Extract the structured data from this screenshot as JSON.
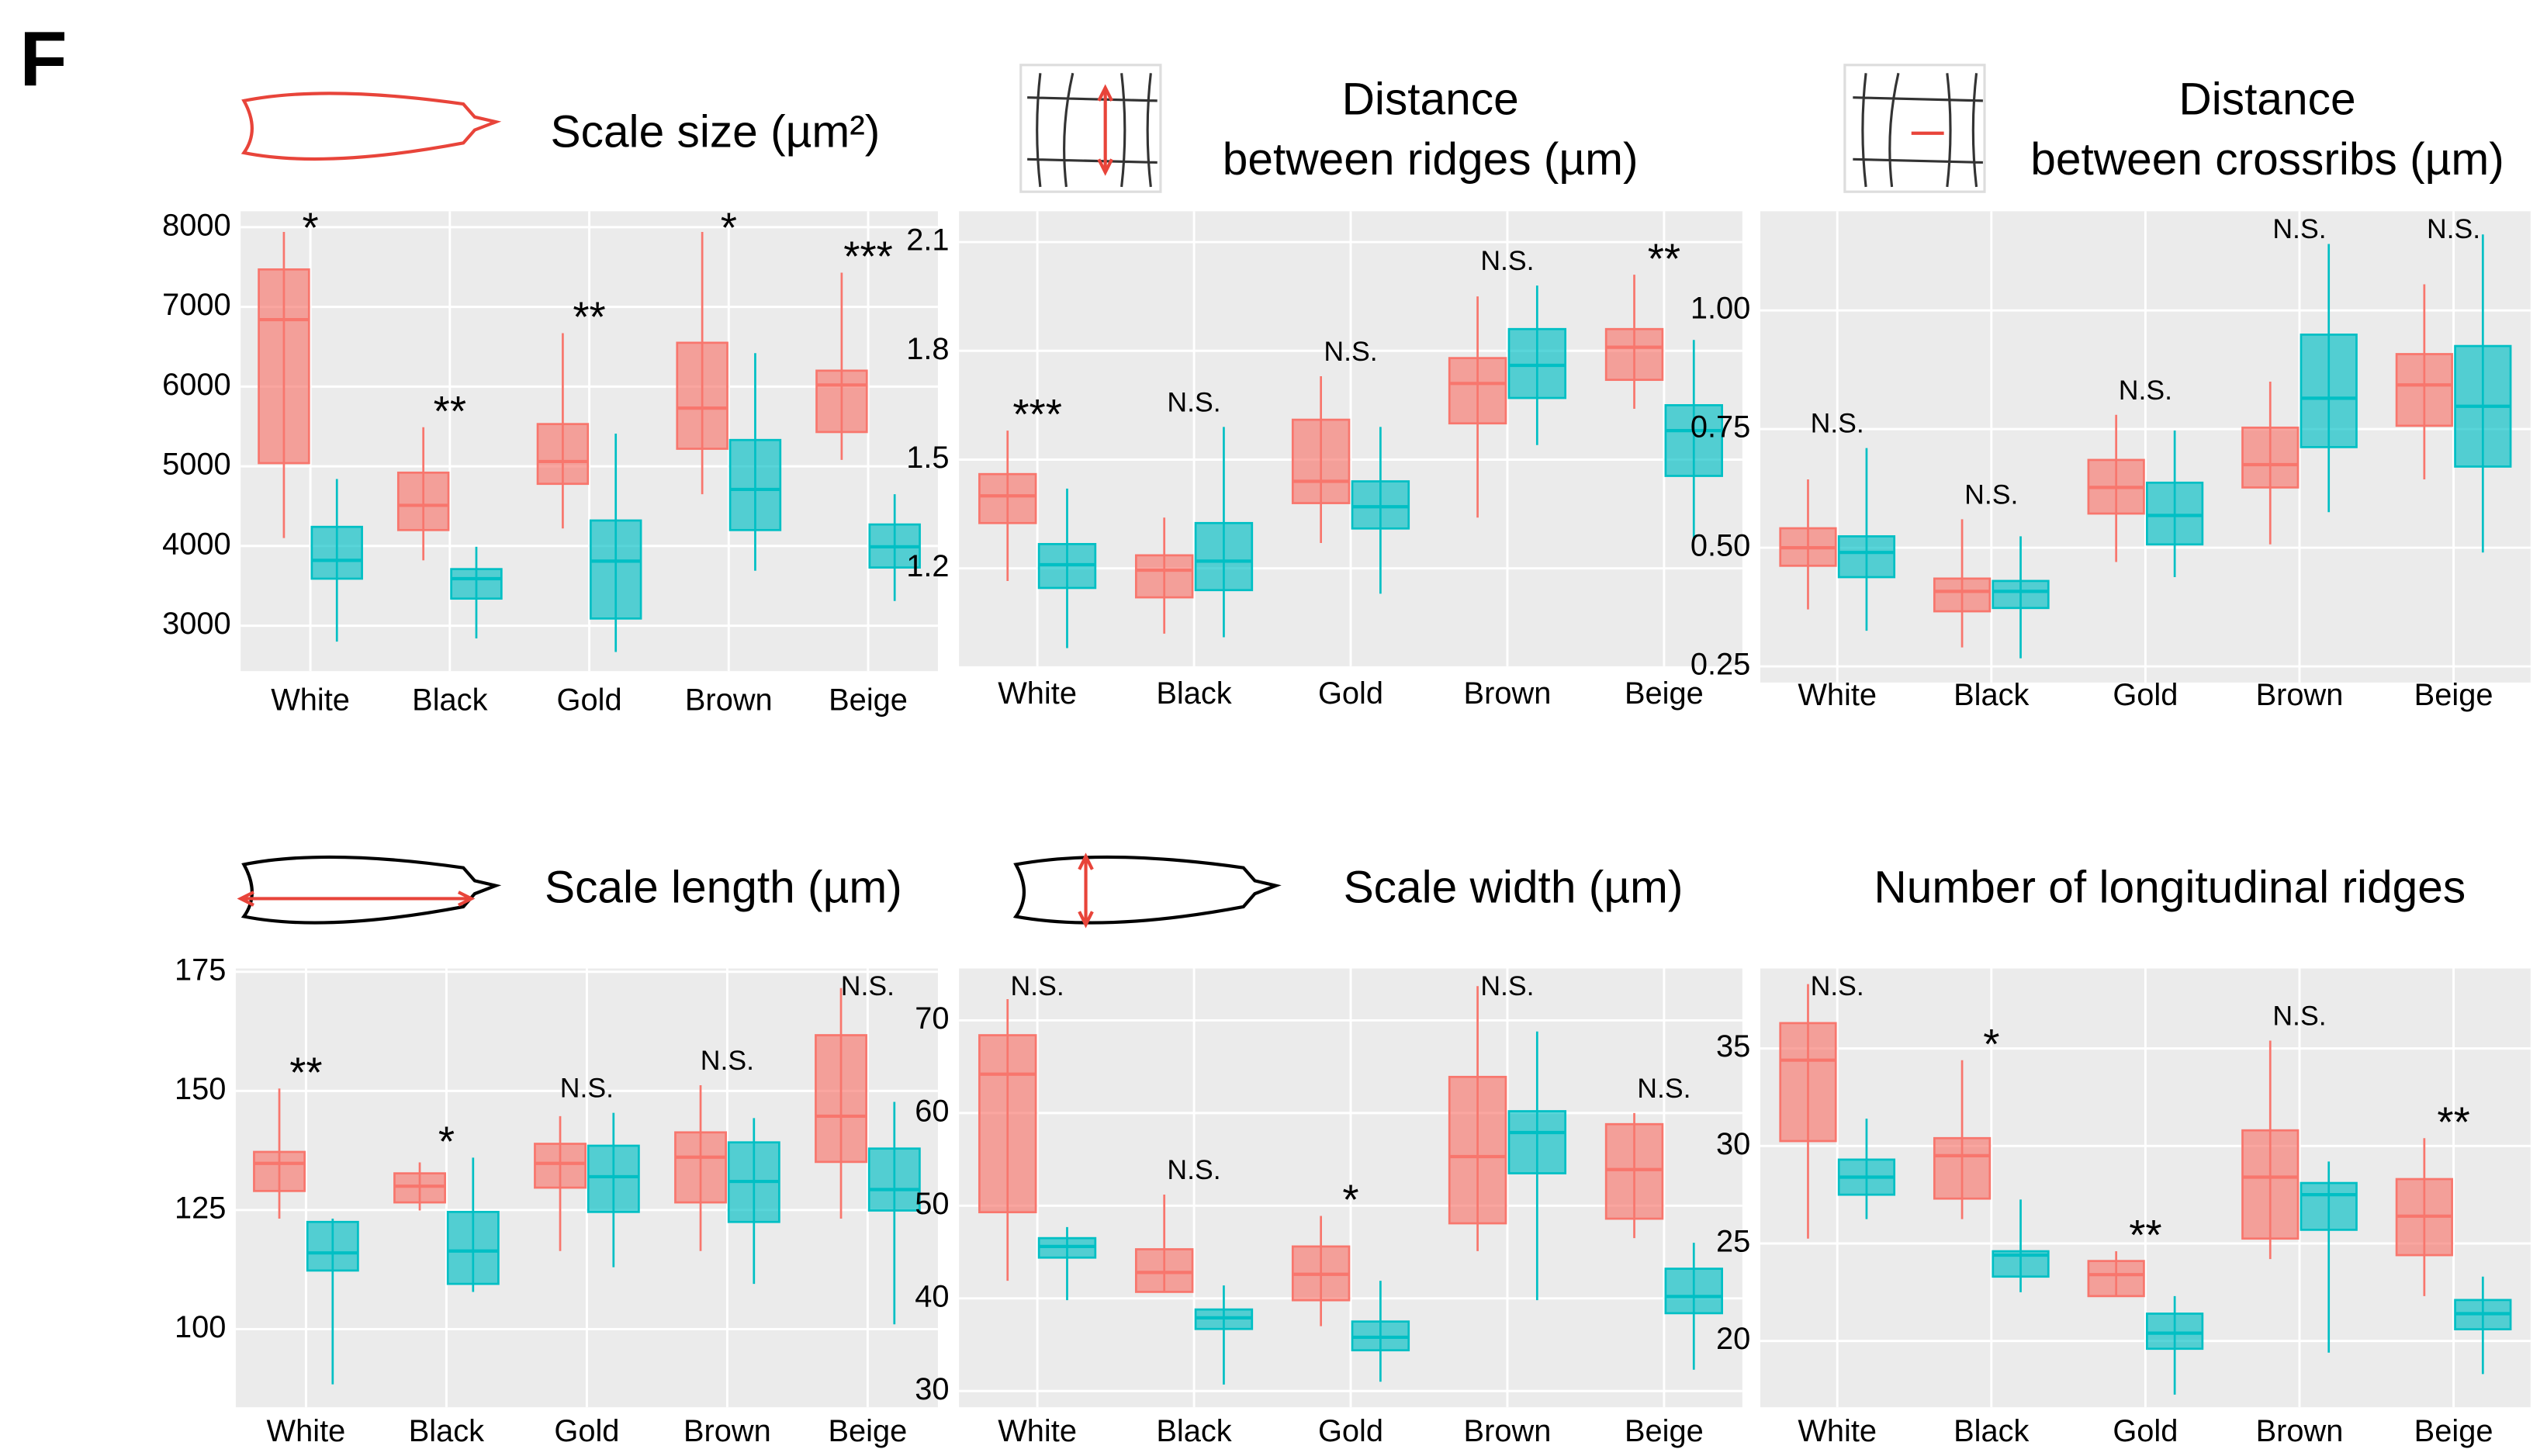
{
  "panel_label": "F",
  "chart_data": [
    {
      "type": "box",
      "title": [
        "Scale size (µm²)"
      ],
      "categories": [
        "White",
        "Black",
        "Gold",
        "Brown",
        "Beige"
      ],
      "ylim": [
        2430,
        8200
      ],
      "yticks": [
        3000,
        4000,
        5000,
        6000,
        7000,
        8000
      ],
      "grid": true,
      "series": [
        {
          "color": "#f8766d",
          "values": [
            [
              4100,
              5040,
              6840,
              7470,
              7940
            ],
            [
              3820,
              4200,
              4510,
              4920,
              5490
            ],
            [
              4220,
              4780,
              5060,
              5530,
              6670
            ],
            [
              4650,
              5220,
              5730,
              6550,
              7940
            ],
            [
              5080,
              5430,
              6020,
              6200,
              7430
            ]
          ]
        },
        {
          "color": "#00bfc4",
          "values": [
            [
              2800,
              3590,
              3820,
              4240,
              4840
            ],
            [
              2840,
              3340,
              3590,
              3710,
              3990
            ],
            [
              2670,
              3090,
              3810,
              4320,
              5410
            ],
            [
              3690,
              4200,
              4710,
              5330,
              6420
            ],
            [
              3310,
              3730,
              3990,
              4270,
              4650
            ]
          ]
        }
      ],
      "annotations": [
        "*",
        "**",
        "**",
        "*",
        "***"
      ]
    },
    {
      "type": "box",
      "title": [
        "Distance",
        "between ridges (µm)"
      ],
      "categories": [
        "White",
        "Black",
        "Gold",
        "Brown",
        "Beige"
      ],
      "ylim": [
        0.93,
        2.185
      ],
      "yticks": [
        1.2,
        1.5,
        1.8,
        2.1
      ],
      "grid": true,
      "series": [
        {
          "color": "#f8766d",
          "values": [
            [
              1.165,
              1.325,
              1.4,
              1.46,
              1.58
            ],
            [
              1.02,
              1.12,
              1.195,
              1.236,
              1.34
            ],
            [
              1.27,
              1.38,
              1.44,
              1.61,
              1.73
            ],
            [
              1.34,
              1.6,
              1.71,
              1.78,
              1.95
            ],
            [
              1.64,
              1.72,
              1.81,
              1.86,
              2.01
            ]
          ]
        },
        {
          "color": "#00bfc4",
          "values": [
            [
              0.98,
              1.146,
              1.21,
              1.267,
              1.42
            ],
            [
              1.01,
              1.14,
              1.22,
              1.325,
              1.59
            ],
            [
              1.13,
              1.31,
              1.37,
              1.44,
              1.59
            ],
            [
              1.54,
              1.67,
              1.76,
              1.86,
              1.98
            ],
            [
              1.28,
              1.455,
              1.58,
              1.65,
              1.83
            ]
          ]
        }
      ],
      "annotations": [
        "***",
        "N.S.",
        "N.S.",
        "N.S.",
        "**"
      ]
    },
    {
      "type": "box",
      "title": [
        "Distance",
        "between crossribs (µm)"
      ],
      "categories": [
        "White",
        "Black",
        "Gold",
        "Brown",
        "Beige"
      ],
      "ylim": [
        0.216,
        1.209
      ],
      "yticks": [
        0.25,
        {
          "value": 0.5,
          "label": "0.50"
        },
        0.75,
        {
          "value": 1,
          "label": "1.00"
        }
      ],
      "grid": true,
      "series": [
        {
          "color": "#f8766d",
          "values": [
            [
              0.37,
              0.462,
              0.5,
              0.541,
              0.644
            ],
            [
              0.29,
              0.366,
              0.408,
              0.435,
              0.56
            ],
            [
              0.47,
              0.572,
              0.627,
              0.685,
              0.78
            ],
            [
              0.507,
              0.627,
              0.675,
              0.753,
              0.85
            ],
            [
              0.644,
              0.757,
              0.843,
              0.908,
              1.055
            ]
          ]
        },
        {
          "color": "#00bfc4",
          "values": [
            [
              0.325,
              0.438,
              0.49,
              0.524,
              0.71
            ],
            [
              0.267,
              0.373,
              0.408,
              0.43,
              0.524
            ],
            [
              0.438,
              0.507,
              0.568,
              0.637,
              0.747
            ],
            [
              0.575,
              0.712,
              0.815,
              0.949,
              1.14
            ],
            [
              0.49,
              0.671,
              0.798,
              0.925,
              1.16
            ]
          ]
        }
      ],
      "annotations": [
        "N.S.",
        "N.S.",
        "N.S.",
        "N.S.",
        "N.S."
      ]
    },
    {
      "type": "box",
      "title": [
        "Scale length (µm)"
      ],
      "categories": [
        "White",
        "Black",
        "Gold",
        "Brown",
        "Beige"
      ],
      "ylim": [
        83.6,
        175.7
      ],
      "yticks": [
        100,
        125,
        150,
        175
      ],
      "grid": true,
      "series": [
        {
          "color": "#f8766d",
          "values": [
            [
              123.2,
              129,
              134.8,
              137.2,
              150.5
            ],
            [
              124.9,
              126.6,
              130,
              132.7,
              135
            ],
            [
              116.4,
              129.7,
              134.8,
              138.9,
              144.7
            ],
            [
              116.4,
              126.6,
              136.1,
              141.3,
              151.2
            ],
            [
              123.2,
              135.1,
              144.7,
              161.7,
              171.6
            ]
          ]
        },
        {
          "color": "#00bfc4",
          "values": [
            [
              88.4,
              112.3,
              116,
              122.5,
              123.2
            ],
            [
              107.8,
              109.5,
              116.4,
              124.6,
              136
            ],
            [
              113,
              124.6,
              132,
              138.5,
              145.4
            ],
            [
              109.5,
              122.5,
              131,
              139.2,
              144.3
            ],
            [
              101,
              124.9,
              129.3,
              137.9,
              147.7
            ]
          ]
        }
      ],
      "annotations": [
        "**",
        "*",
        "N.S.",
        "N.S.",
        "N.S."
      ]
    },
    {
      "type": "box",
      "title": [
        "Scale width (µm)"
      ],
      "categories": [
        "White",
        "Black",
        "Gold",
        "Brown",
        "Beige"
      ],
      "ylim": [
        28.25,
        75.6
      ],
      "yticks": [
        30,
        40,
        50,
        60,
        70
      ],
      "grid": true,
      "series": [
        {
          "color": "#f8766d",
          "values": [
            [
              41.9,
              49.3,
              64.2,
              68.4,
              72.3
            ],
            [
              40.7,
              40.7,
              42.8,
              45.3,
              51.2
            ],
            [
              37,
              39.8,
              42.6,
              45.6,
              48.9
            ],
            [
              45.1,
              48.1,
              55.3,
              63.9,
              73.7
            ],
            [
              46.5,
              48.6,
              53.9,
              58.8,
              60
            ]
          ]
        },
        {
          "color": "#00bfc4",
          "values": [
            [
              39.8,
              44.4,
              45.6,
              46.5,
              47.7
            ],
            [
              30.7,
              36.7,
              37.9,
              38.8,
              41.4
            ],
            [
              31,
              34.4,
              35.8,
              37.5,
              41.9
            ],
            [
              39.8,
              53.5,
              57.9,
              60.2,
              68.8
            ],
            [
              32.3,
              38.4,
              40.2,
              43.2,
              46
            ]
          ]
        }
      ],
      "annotations": [
        "N.S.",
        "N.S.",
        "*",
        "N.S.",
        "N.S."
      ]
    },
    {
      "type": "box",
      "title": [
        "Number of longitudinal ridges"
      ],
      "categories": [
        "White",
        "Black",
        "Gold",
        "Brown",
        "Beige"
      ],
      "ylim": [
        16.6,
        39.1
      ],
      "yticks": [
        20,
        25,
        30,
        35
      ],
      "grid": true,
      "series": [
        {
          "color": "#f8766d",
          "values": [
            [
              25.25,
              30.25,
              34.4,
              36.3,
              38.3
            ],
            [
              26.25,
              27.3,
              29.5,
              30.4,
              34.4
            ],
            [
              22.3,
              22.3,
              23.4,
              24.1,
              24.6
            ],
            [
              24.2,
              25.25,
              28.4,
              30.8,
              35.4
            ],
            [
              22.3,
              24.4,
              26.4,
              28.3,
              30.4
            ]
          ]
        },
        {
          "color": "#00bfc4",
          "values": [
            [
              26.25,
              27.5,
              28.4,
              29.3,
              31.4
            ],
            [
              22.5,
              23.3,
              24.4,
              24.6,
              27.25
            ],
            [
              17.25,
              19.6,
              20.4,
              21.4,
              22.3
            ],
            [
              19.4,
              25.7,
              27.5,
              28.1,
              29.2
            ],
            [
              18.3,
              20.6,
              21.4,
              22.1,
              23.3
            ]
          ]
        }
      ],
      "annotations": [
        "N.S.",
        "*",
        "**",
        "N.S.",
        "**"
      ]
    }
  ]
}
